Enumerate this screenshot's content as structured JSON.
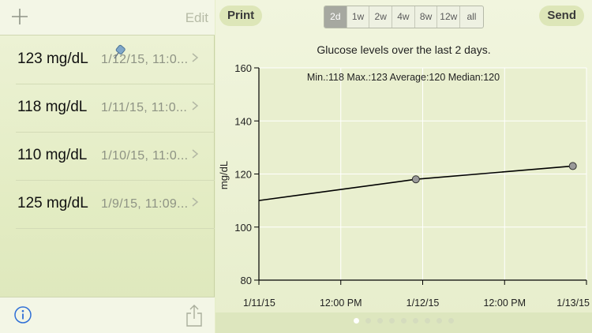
{
  "left": {
    "add_icon": "plus-icon",
    "edit_label": "Edit",
    "readings": [
      {
        "value": "123 mg/dL",
        "date": "1/12/15, 11:0..."
      },
      {
        "value": "118 mg/dL",
        "date": "1/11/15, 11:0..."
      },
      {
        "value": "110 mg/dL",
        "date": "1/10/15, 11:0..."
      },
      {
        "value": "125 mg/dL",
        "date": "1/9/15, 11:09..."
      }
    ],
    "info_icon": "info-icon",
    "share_icon": "share-icon"
  },
  "toolbar": {
    "print_label": "Print",
    "send_label": "Send",
    "ranges": [
      "2d",
      "1w",
      "2w",
      "4w",
      "8w",
      "12w",
      "all"
    ],
    "active_range": "2d"
  },
  "stats": "Min.:118 Max.:123 Average:120 Median:120",
  "pager": {
    "count": 9,
    "active": 0
  },
  "colors": {
    "accent_gray": "#a6a8a0",
    "line": "#000000",
    "marker_fill": "#9a9a9a",
    "grid": "#ffffff"
  },
  "chart_data": {
    "type": "line",
    "title": "Glucose levels over the last 2 days.",
    "ylabel": "mg/dL",
    "xlabel": "",
    "ylim": [
      80,
      160
    ],
    "yticks": [
      "80",
      "100",
      "120",
      "140",
      "160"
    ],
    "xticks": [
      "1/11/15",
      "12:00 PM",
      "1/12/15",
      "12:00 PM",
      "1/13/15"
    ],
    "grid": true,
    "series": [
      {
        "x_hours": [
          0,
          24,
          48
        ],
        "points": [
          {
            "x": "1/11/15 ~12:00 AM",
            "y": 110,
            "marker": false
          },
          {
            "x": "1/11/15 ~11:00 PM",
            "y": 118,
            "marker": true
          },
          {
            "x": "1/12/15 ~11:00 PM",
            "y": 123,
            "marker": true
          }
        ]
      }
    ]
  }
}
